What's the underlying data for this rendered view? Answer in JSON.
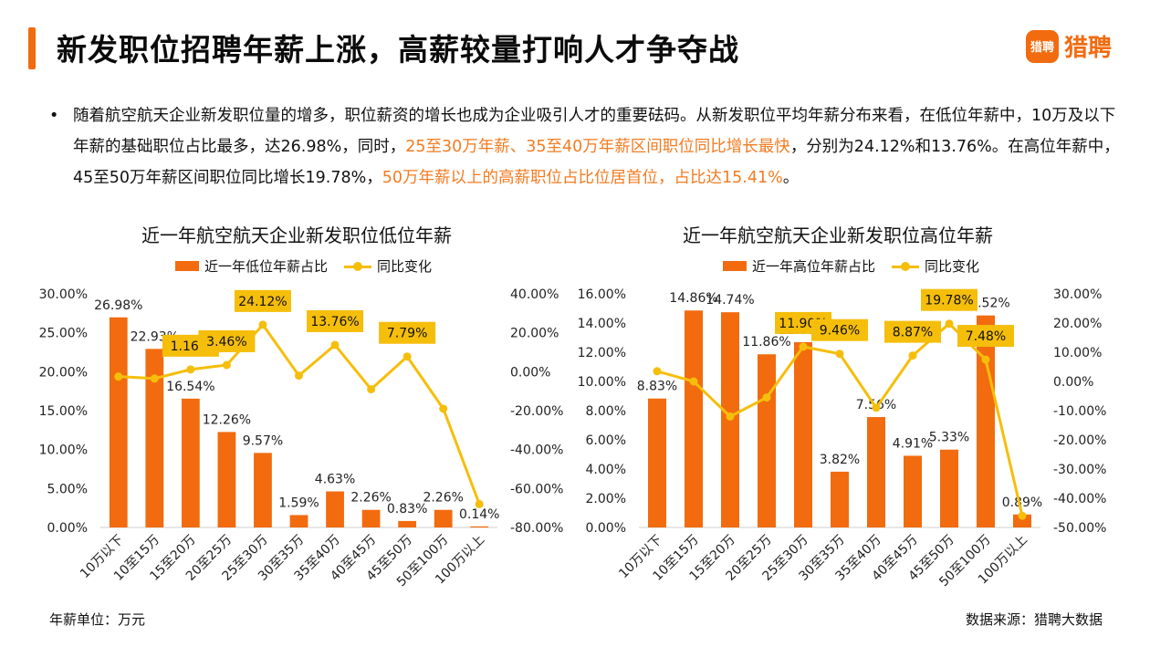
{
  "header": {
    "title": "新发职位招聘年薪上涨，高薪较量打响人才争夺战",
    "brand_icon_text": "猎聘",
    "brand_text": "猎聘"
  },
  "paragraph": {
    "bullet": "•",
    "seg1": "随着航空航天企业新发职位量的增多，职位薪资的增长也成为企业吸引人才的重要砝码。从新发职位平均年薪分布来看，在低位年薪中，10万及以下年薪的基础职位占比最多，达26.98%，同时，",
    "hl1": "25至30万年薪、35至40万年薪区间职位同比增长最快",
    "seg2": "，分别为24.12%和13.76%。在高位年薪中，45至50万年薪区间职位同比增长19.78%，",
    "hl2": "50万年薪以上的高薪职位占比位居首位，占比达15.41%",
    "seg3": "。"
  },
  "footer": {
    "unit_note": "年薪单位：万元",
    "source_note": "数据来源：猎聘大数据"
  },
  "colors": {
    "accent": "#f26b0f",
    "line": "#f5be0b",
    "callout": "#f5be0b",
    "highlight_text": "#f47b20"
  },
  "chart_data": [
    {
      "type": "bar",
      "title": "近一年航空航天企业新发职位低位年薪",
      "categories": [
        "10万以下",
        "10至15万",
        "15至20万",
        "20至25万",
        "25至30万",
        "30至35万",
        "35至40万",
        "40至45万",
        "45至50万",
        "50至100万",
        "100万以上"
      ],
      "series": [
        {
          "name": "近一年低位年薪占比",
          "type": "bar",
          "axis": "left",
          "values": [
            26.98,
            22.93,
            16.54,
            12.26,
            9.57,
            1.59,
            4.63,
            2.26,
            0.83,
            2.26,
            0.14
          ],
          "labels": [
            "26.98%",
            "22.93%",
            "16.54%",
            "12.26%",
            "9.57%",
            "1.59%",
            "4.63%",
            "2.26%",
            "0.83%",
            "2.26%",
            "0.14%"
          ]
        },
        {
          "name": "同比变化",
          "type": "line",
          "axis": "right",
          "values": [
            -2.5,
            -3.5,
            1.16,
            3.46,
            24.12,
            -2.0,
            13.76,
            -9.0,
            7.79,
            -19.0,
            -68.0
          ],
          "callouts": [
            {
              "index": 2,
              "label": "1.16%"
            },
            {
              "index": 3,
              "label": "3.46%"
            },
            {
              "index": 4,
              "label": "24.12%"
            },
            {
              "index": 6,
              "label": "13.76%"
            },
            {
              "index": 8,
              "label": "7.79%"
            }
          ]
        }
      ],
      "left_axis": {
        "ylim": [
          0,
          30
        ],
        "ticks": [
          0,
          5,
          10,
          15,
          20,
          25,
          30
        ],
        "tick_labels": [
          "0.00%",
          "5.00%",
          "10.00%",
          "15.00%",
          "20.00%",
          "25.00%",
          "30.00%"
        ]
      },
      "right_axis": {
        "ylim": [
          -80,
          40
        ],
        "ticks": [
          -80,
          -60,
          -40,
          -20,
          0,
          20,
          40
        ],
        "tick_labels": [
          "-80.00%",
          "-60.00%",
          "-40.00%",
          "-20.00%",
          "0.00%",
          "20.00%",
          "40.00%"
        ]
      },
      "grid": false,
      "legend": "top"
    },
    {
      "type": "bar",
      "title": "近一年航空航天企业新发职位高位年薪",
      "categories": [
        "10万以下",
        "10至15万",
        "15至20万",
        "20至25万",
        "25至30万",
        "30至35万",
        "35至40万",
        "40至45万",
        "45至50万",
        "50至100万",
        "100万以上"
      ],
      "series": [
        {
          "name": "近一年高位年薪占比",
          "type": "bar",
          "axis": "left",
          "values": [
            8.83,
            14.86,
            14.74,
            11.86,
            12.69,
            3.82,
            7.56,
            4.91,
            5.33,
            14.52,
            0.89
          ],
          "labels": [
            "8.83%",
            "14.86%",
            "14.74%",
            "11.86%",
            "12.69%",
            "3.82%",
            "7.56%",
            "4.91%",
            "5.33%",
            "14.52%",
            "0.89%"
          ]
        },
        {
          "name": "同比变化",
          "type": "line",
          "axis": "right",
          "values": [
            3.5,
            0.0,
            -12.0,
            -5.5,
            11.9,
            9.46,
            -9.0,
            8.87,
            19.78,
            7.48,
            -46.0
          ],
          "callouts": [
            {
              "index": 4,
              "label": "11.90%"
            },
            {
              "index": 5,
              "label": "9.46%"
            },
            {
              "index": 7,
              "label": "8.87%"
            },
            {
              "index": 8,
              "label": "19.78%"
            },
            {
              "index": 9,
              "label": "7.48%"
            }
          ]
        }
      ],
      "left_axis": {
        "ylim": [
          0,
          16
        ],
        "ticks": [
          0,
          2,
          4,
          6,
          8,
          10,
          12,
          14,
          16
        ],
        "tick_labels": [
          "0.00%",
          "2.00%",
          "4.00%",
          "6.00%",
          "8.00%",
          "10.00%",
          "12.00%",
          "14.00%",
          "16.00%"
        ]
      },
      "right_axis": {
        "ylim": [
          -50,
          30
        ],
        "ticks": [
          -50,
          -40,
          -30,
          -20,
          -10,
          0,
          10,
          20,
          30
        ],
        "tick_labels": [
          "-50.00%",
          "-40.00%",
          "-30.00%",
          "-20.00%",
          "-10.00%",
          "0.00%",
          "10.00%",
          "20.00%",
          "30.00%"
        ]
      },
      "grid": false,
      "legend": "top"
    }
  ]
}
